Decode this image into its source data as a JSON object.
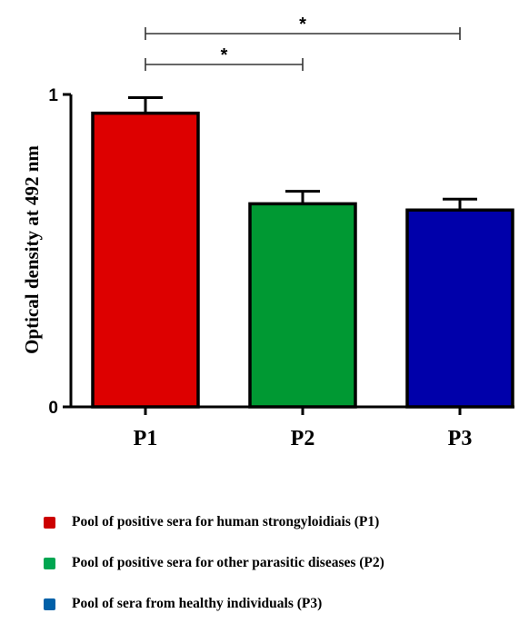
{
  "chart_data": {
    "type": "bar",
    "categories": [
      "P1",
      "P2",
      "P3"
    ],
    "values": [
      0.94,
      0.65,
      0.63
    ],
    "errors": [
      0.05,
      0.04,
      0.035
    ],
    "ylabel": "Optical density at 492 nm",
    "ylim": [
      0,
      1
    ],
    "yticks": [
      {
        "value": 0,
        "label": "0"
      },
      {
        "value": 1,
        "label": "1"
      }
    ],
    "grid": false,
    "legend_placement": "bottom",
    "colors": [
      "#dd0000",
      "#009933",
      "#0000aa"
    ],
    "significance": [
      {
        "from": "P1",
        "to": "P2",
        "label": "*"
      },
      {
        "from": "P1",
        "to": "P3",
        "label": "*"
      }
    ]
  },
  "legend": {
    "items": [
      {
        "label": "Pool of positive sera for human strongyloidiais (P1)",
        "color": "#cc0000"
      },
      {
        "label": "Pool of positive sera for other parasitic diseases (P2)",
        "color": "#00a651"
      },
      {
        "label": "Pool of sera from healthy individuals (P3)",
        "color": "#0060a8"
      }
    ]
  }
}
